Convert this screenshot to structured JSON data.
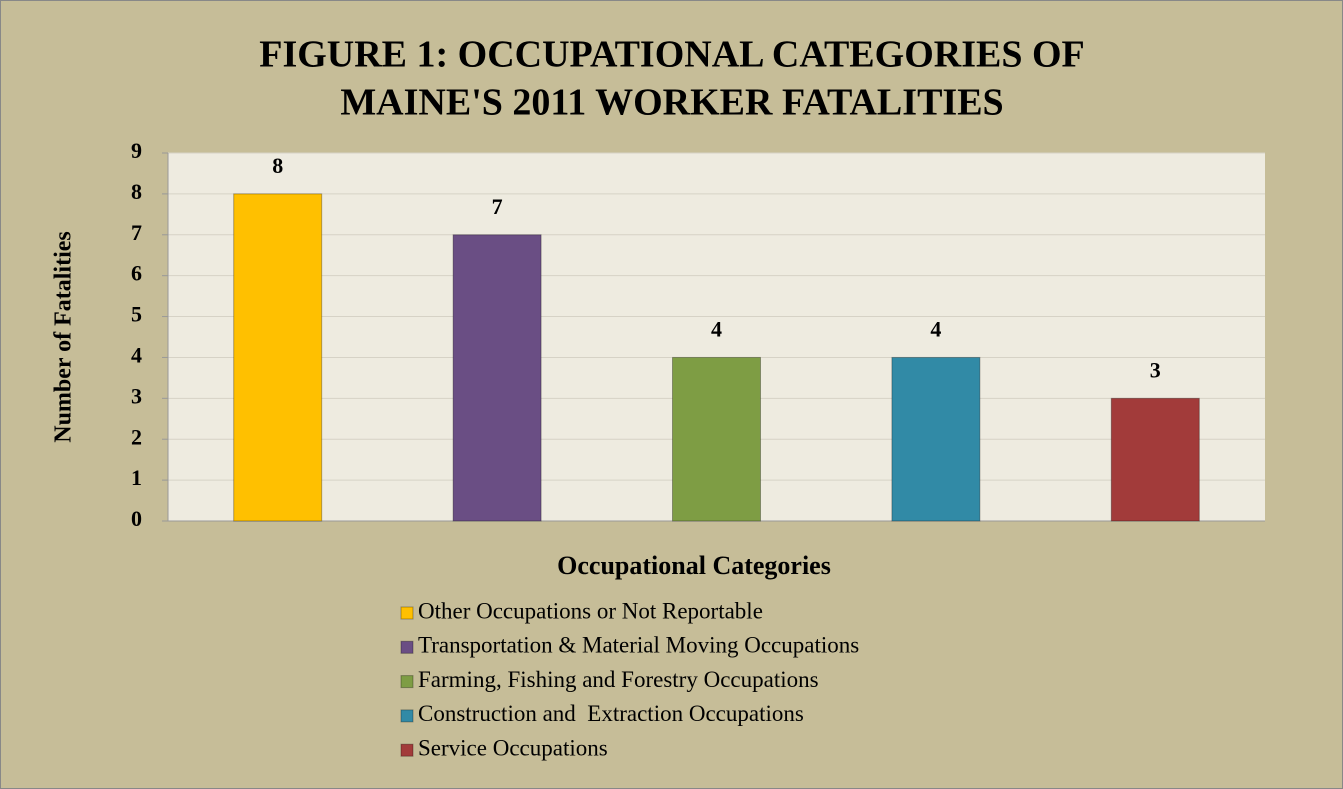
{
  "chart_data": {
    "type": "bar",
    "title": [
      "FIGURE 1:   OCCUPATIONAL CATEGORIES OF",
      "MAINE'S 2011 WORKER FATALITIES"
    ],
    "y_label": "Number of Fatalities",
    "x_label": "Occupational Categories",
    "categories": [
      "Other Occupations or Not Reportable",
      "Transportation & Material Moving Occupations",
      "Farming, Fishing and Forestry Occupations",
      "Construction and  Extraction Occupations",
      "Service Occupations"
    ],
    "values": [
      8,
      7,
      4,
      4,
      3
    ],
    "colors": [
      "#ffc000",
      "#6a4e84",
      "#7e9d44",
      "#318aa6",
      "#a23b3a"
    ],
    "ylim": [
      0,
      9
    ],
    "yticks": [
      0,
      1,
      2,
      3,
      4,
      5,
      6,
      7,
      8,
      9
    ],
    "grid": true,
    "legend": "bottom"
  }
}
